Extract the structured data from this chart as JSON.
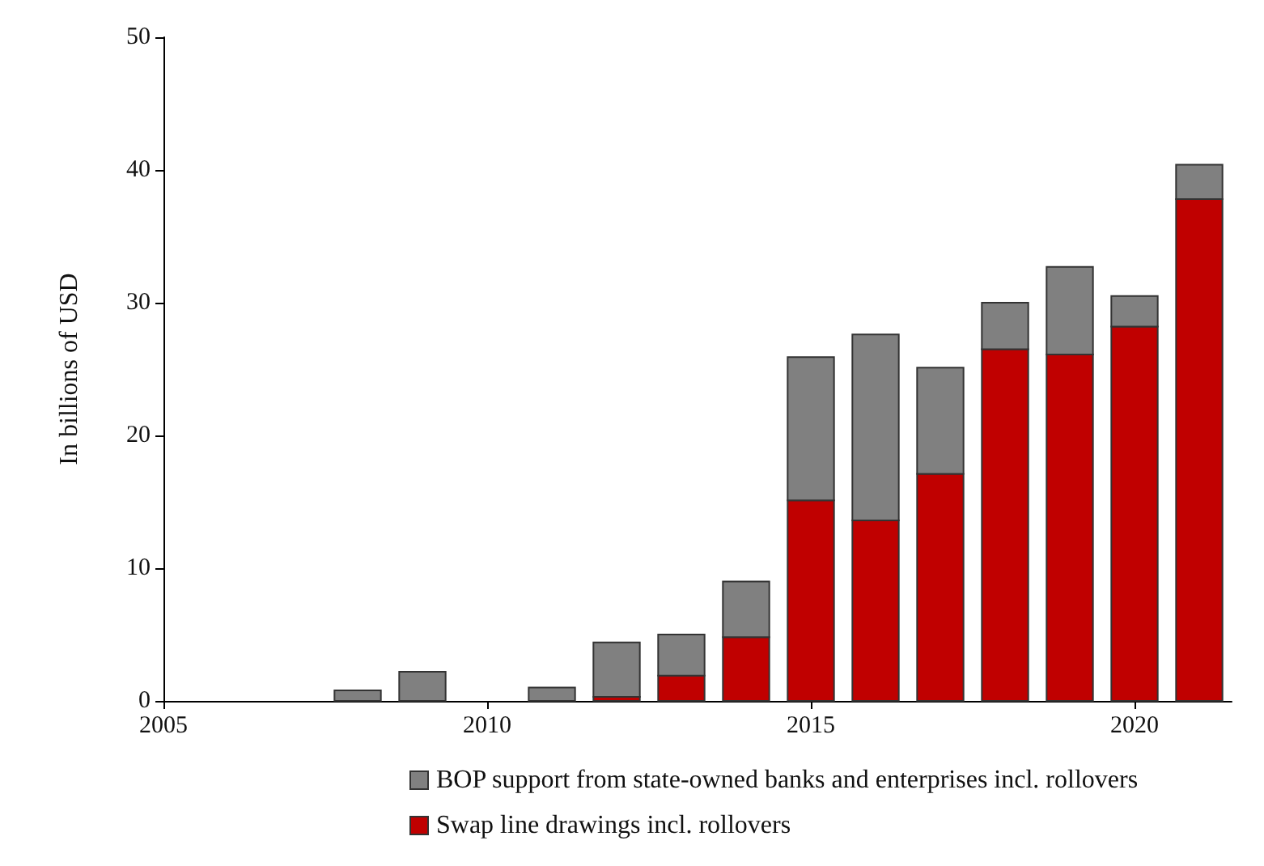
{
  "chart_data": {
    "type": "bar",
    "stacked": true,
    "ylabel": "In billions of USD",
    "x": [
      2008,
      2009,
      2010,
      2011,
      2012,
      2013,
      2014,
      2015,
      2016,
      2017,
      2018,
      2019,
      2020,
      2021
    ],
    "series": [
      {
        "name": "Swap line drawings incl. rollovers",
        "color": "#c00000",
        "values": [
          0,
          0,
          0,
          0,
          0.3,
          1.9,
          4.8,
          15.1,
          13.6,
          17.1,
          26.5,
          26.1,
          28.2,
          37.8
        ]
      },
      {
        "name": "BOP support from state-owned banks and enterprises incl. rollovers",
        "color": "#808080",
        "values": [
          0.8,
          2.2,
          0,
          1.0,
          4.1,
          3.1,
          4.2,
          10.8,
          14.0,
          8.0,
          3.5,
          6.6,
          2.3,
          2.6
        ]
      }
    ],
    "xlim": [
      2005,
      2021.5
    ],
    "xticks": [
      2005,
      2010,
      2015,
      2020
    ],
    "ylim": [
      0,
      50
    ],
    "yticks": [
      0,
      10,
      20,
      30,
      40,
      50
    ],
    "grid": false,
    "legend": "bottom"
  }
}
